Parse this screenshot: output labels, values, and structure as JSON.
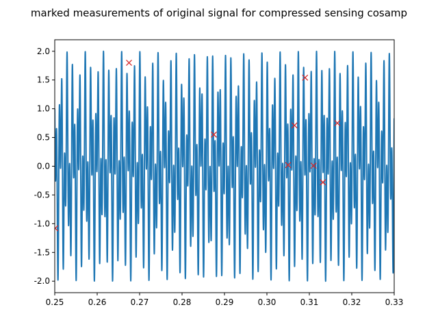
{
  "chart_data": {
    "type": "line",
    "title": "marked measurements of original signal for compressed sensing cosamp",
    "xlabel": "",
    "ylabel": "",
    "xlim": [
      0.25,
      0.33
    ],
    "ylim": [
      -2.2,
      2.2
    ],
    "grid": false,
    "x_ticks": [
      "0.25",
      "0.26",
      "0.27",
      "0.28",
      "0.29",
      "0.30",
      "0.31",
      "0.32",
      "0.33"
    ],
    "y_ticks": [
      "-2.0",
      "-1.5",
      "-1.0",
      "-0.5",
      "0.0",
      "0.5",
      "1.0",
      "1.5",
      "2.0"
    ],
    "series": [
      {
        "kind": "signal",
        "color": "#1f77b4",
        "signal_model": "sin(1394*pi*t) + cos(3266*pi*t)",
        "t_range": [
          0.25,
          0.33
        ]
      },
      {
        "kind": "markers",
        "marker": "x",
        "color": "#d62728",
        "points": [
          [
            0.2501,
            -1.08
          ],
          [
            0.2675,
            1.8
          ],
          [
            0.2875,
            0.55
          ],
          [
            0.305,
            0.02
          ],
          [
            0.3065,
            0.71
          ],
          [
            0.309,
            1.54
          ],
          [
            0.311,
            0.01
          ],
          [
            0.3132,
            -0.28
          ],
          [
            0.3166,
            0.75
          ]
        ]
      }
    ]
  }
}
